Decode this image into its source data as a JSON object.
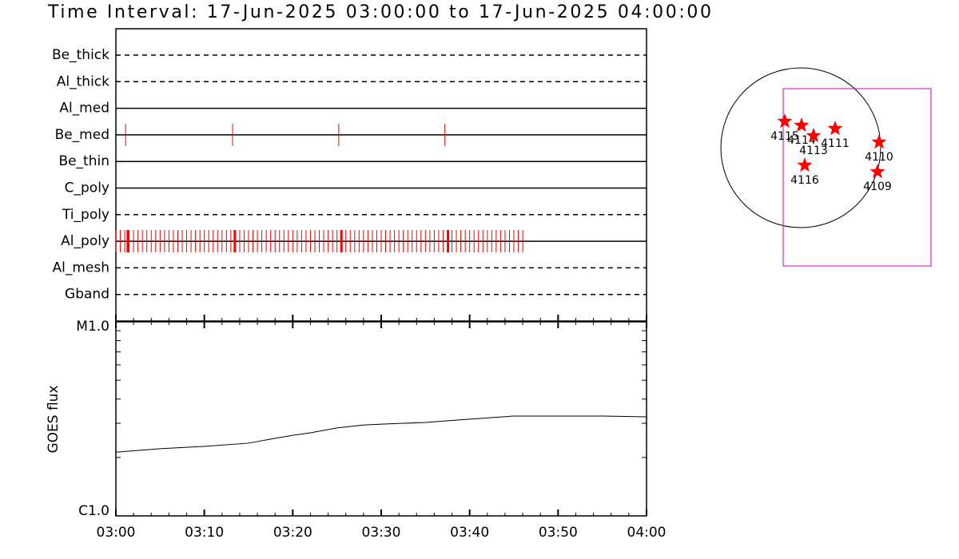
{
  "chart_data": [
    {
      "type": "event",
      "title": "Time Interval: 17-Jun-2025 03:00:00 to 17-Jun-2025 04:00:00",
      "xlim": [
        0,
        60
      ],
      "series": [
        {
          "name": "Be_thick",
          "style": "dashed",
          "color": "#ff0000",
          "x": []
        },
        {
          "name": "Al_thick",
          "style": "dashed",
          "color": "#ff0000",
          "x": []
        },
        {
          "name": "Al_med",
          "style": "solid",
          "color": "#ff0000",
          "x": []
        },
        {
          "name": "Be_med",
          "style": "solid",
          "color": "#ff0000",
          "x": [
            1.1,
            13.2,
            25.2,
            37.2
          ]
        },
        {
          "name": "Be_thin",
          "style": "solid",
          "color": "#ff0000",
          "x": []
        },
        {
          "name": "C_poly",
          "style": "solid",
          "color": "#ff0000",
          "x": []
        },
        {
          "name": "Ti_poly",
          "style": "dashed",
          "color": "#ff0000",
          "x": []
        },
        {
          "name": "Al_poly",
          "style": "solid",
          "color": "#ff0000",
          "x": [
            0,
            0.5,
            1,
            1.5,
            2,
            2.5,
            3,
            3.5,
            4,
            4.5,
            5,
            5.5,
            6,
            6.5,
            7,
            7.5,
            8,
            8.5,
            9,
            9.5,
            10,
            10.5,
            11,
            11.5,
            12,
            12.5,
            13,
            13.5,
            14,
            14.5,
            15,
            15.5,
            16,
            16.5,
            17,
            17.5,
            18,
            18.5,
            19,
            19.5,
            20,
            20.5,
            21,
            21.5,
            22,
            22.5,
            23,
            23.5,
            24,
            24.5,
            25,
            25.5,
            26,
            26.5,
            27,
            27.5,
            28,
            28.5,
            29,
            29.5,
            30,
            30.5,
            31,
            31.5,
            32,
            32.5,
            33,
            33.5,
            34,
            34.5,
            35,
            35.5,
            36,
            36.5,
            37,
            37.5,
            38,
            38.5,
            39,
            39.5,
            40,
            40.5,
            41,
            41.5,
            42,
            42.5,
            43,
            43.5,
            44,
            44.5,
            45,
            45.5,
            46
          ],
          "x_thick": [
            1.35,
            13.45,
            25.5,
            37.55
          ]
        },
        {
          "name": "Al_mesh",
          "style": "dashed",
          "color": "#ff0000",
          "x": []
        },
        {
          "name": "Gband",
          "style": "dashed",
          "color": "#ff0000",
          "x": []
        }
      ]
    },
    {
      "type": "line",
      "ylabel": "GOES flux",
      "log_y": true,
      "color": "#000000",
      "x": [
        0,
        5,
        10,
        15,
        18,
        20,
        22,
        25,
        28,
        30,
        35,
        40,
        45,
        50,
        55,
        60
      ],
      "values": [
        2.13e-06,
        2.22e-06,
        2.28e-06,
        2.37e-06,
        2.51e-06,
        2.6e-06,
        2.68e-06,
        2.84e-06,
        2.94e-06,
        2.97e-06,
        3.03e-06,
        3.15e-06,
        3.27e-06,
        3.27e-06,
        3.27e-06,
        3.24e-06
      ],
      "xlim": [
        0,
        60
      ],
      "xticks": [
        {
          "value": 0,
          "label": "03:00"
        },
        {
          "value": 10,
          "label": "03:10"
        },
        {
          "value": 20,
          "label": "03:20"
        },
        {
          "value": 30,
          "label": "03:30"
        },
        {
          "value": 40,
          "label": "03:40"
        },
        {
          "value": 50,
          "label": "03:50"
        },
        {
          "value": 60,
          "label": "04:00"
        }
      ],
      "minor_xticks": [
        2,
        4,
        6,
        8,
        12,
        14,
        16,
        18,
        22,
        24,
        26,
        28,
        32,
        34,
        36,
        38,
        42,
        44,
        46,
        48,
        52,
        54,
        56,
        58
      ],
      "ylim": [
        1e-06,
        1e-05
      ],
      "yticks": [
        {
          "value": 1e-06,
          "label": "C1.0"
        },
        {
          "value": 1e-05,
          "label": "M1.0"
        }
      ],
      "minor_yticks": [
        2e-06,
        3e-06,
        4e-06,
        5e-06,
        6e-06,
        7e-06,
        8e-06,
        9e-06
      ]
    },
    {
      "type": "map",
      "color": "#ff0000",
      "fov_color": "#cc00cc",
      "points": [
        {
          "name": "4115",
          "x": -189,
          "y": 312
        },
        {
          "name": "4114",
          "x": 9,
          "y": 265
        },
        {
          "name": "4113",
          "x": 151,
          "y": 142
        },
        {
          "name": "4111",
          "x": 406,
          "y": 227
        },
        {
          "name": "4110",
          "x": 926,
          "y": 66
        },
        {
          "name": "4116",
          "x": 47,
          "y": -208
        },
        {
          "name": "4109",
          "x": 907,
          "y": -284
        }
      ],
      "fov": {
        "xlim": [
          -208,
          1540
        ],
        "ylim": [
          -1399,
          699
        ]
      }
    }
  ]
}
